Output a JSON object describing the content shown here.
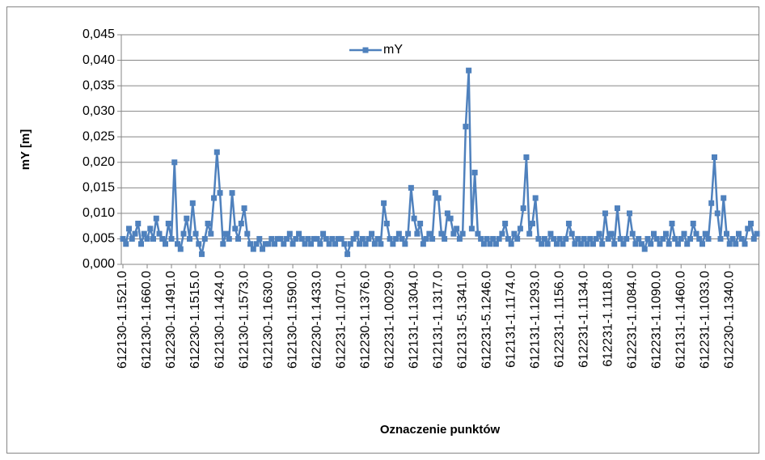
{
  "chart_data": {
    "type": "line",
    "y_label": "mY [m]",
    "x_label": "Oznaczenie punktów",
    "legend": "top",
    "grid": true,
    "ylim": [
      0,
      0.045
    ],
    "yticks": [
      {
        "value": 0,
        "label": "0,000"
      },
      {
        "value": 0.005,
        "label": "0,005"
      },
      {
        "value": 0.01,
        "label": "0,010"
      },
      {
        "value": 0.015,
        "label": "0,015"
      },
      {
        "value": 0.02,
        "label": "0,020"
      },
      {
        "value": 0.025,
        "label": "0,025"
      },
      {
        "value": 0.03,
        "label": "0,030"
      },
      {
        "value": 0.035,
        "label": "0,035"
      },
      {
        "value": 0.04,
        "label": "0,040"
      },
      {
        "value": 0.045,
        "label": "0,045"
      }
    ],
    "categories": [
      "612130-1.1521.0",
      null,
      null,
      null,
      null,
      null,
      null,
      null,
      "612130-1.1660.0",
      null,
      null,
      null,
      null,
      null,
      null,
      null,
      "612230-1.1491.0",
      null,
      null,
      null,
      null,
      null,
      null,
      null,
      "612230-1.1515.0",
      null,
      null,
      null,
      null,
      null,
      null,
      null,
      "612130-1.1424.0",
      null,
      null,
      null,
      null,
      null,
      null,
      null,
      "612130-1.1573.0",
      null,
      null,
      null,
      null,
      null,
      null,
      null,
      "612130-1.1630.0",
      null,
      null,
      null,
      null,
      null,
      null,
      null,
      "612130-1.1590.0",
      null,
      null,
      null,
      null,
      null,
      null,
      null,
      "612230-1.1433.0",
      null,
      null,
      null,
      null,
      null,
      null,
      null,
      "612231-1.1071.0",
      null,
      null,
      null,
      null,
      null,
      null,
      null,
      "612230-1.1376.0",
      null,
      null,
      null,
      null,
      null,
      null,
      null,
      "612231-1.0029.0",
      null,
      null,
      null,
      null,
      null,
      null,
      null,
      "612131-1.1304.0",
      null,
      null,
      null,
      null,
      null,
      null,
      null,
      "612131-1.1317.0",
      null,
      null,
      null,
      null,
      null,
      null,
      null,
      "612131-5.1341.0",
      null,
      null,
      null,
      null,
      null,
      null,
      null,
      "612231-5.1246.0",
      null,
      null,
      null,
      null,
      null,
      null,
      null,
      "612131-1.1174.0",
      null,
      null,
      null,
      null,
      null,
      null,
      null,
      "612131-1.1293.0",
      null,
      null,
      null,
      null,
      null,
      null,
      null,
      "612231-1.1156.0",
      null,
      null,
      null,
      null,
      null,
      null,
      null,
      "612231-1.1134.0",
      null,
      null,
      null,
      null,
      null,
      null,
      null,
      "612231-1.1118.0",
      null,
      null,
      null,
      null,
      null,
      null,
      null,
      "612231-1.1084.0",
      null,
      null,
      null,
      null,
      null,
      null,
      null,
      "612231-1.1090.0",
      null,
      null,
      null,
      null,
      null,
      null,
      null,
      "612131-1.1460.0",
      null,
      null,
      null,
      null,
      null,
      null,
      null,
      "612231-1.1033.0",
      null,
      null,
      null,
      null,
      null,
      null,
      null,
      "612230-1.1340.0",
      null,
      null,
      null,
      null,
      null,
      null,
      null,
      null,
      null
    ],
    "series": [
      {
        "name": "mY",
        "color": "#4F81BD",
        "values": [
          0.005,
          0.004,
          0.007,
          0.005,
          0.006,
          0.008,
          0.004,
          0.006,
          0.005,
          0.007,
          0.005,
          0.009,
          0.006,
          0.005,
          0.004,
          0.008,
          0.005,
          0.02,
          0.004,
          0.003,
          0.006,
          0.009,
          0.005,
          0.012,
          0.006,
          0.004,
          0.002,
          0.005,
          0.008,
          0.006,
          0.013,
          0.022,
          0.014,
          0.004,
          0.006,
          0.005,
          0.014,
          0.007,
          0.005,
          0.008,
          0.011,
          0.006,
          0.004,
          0.003,
          0.004,
          0.005,
          0.003,
          0.004,
          0.004,
          0.005,
          0.004,
          0.005,
          0.005,
          0.004,
          0.005,
          0.006,
          0.004,
          0.005,
          0.006,
          0.005,
          0.004,
          0.005,
          0.004,
          0.005,
          0.005,
          0.004,
          0.006,
          0.005,
          0.004,
          0.005,
          0.004,
          0.005,
          0.005,
          0.004,
          0.002,
          0.004,
          0.005,
          0.006,
          0.004,
          0.005,
          0.004,
          0.005,
          0.006,
          0.004,
          0.005,
          0.004,
          0.012,
          0.008,
          0.005,
          0.004,
          0.005,
          0.006,
          0.005,
          0.004,
          0.006,
          0.015,
          0.009,
          0.006,
          0.008,
          0.004,
          0.005,
          0.006,
          0.005,
          0.014,
          0.013,
          0.006,
          0.005,
          0.01,
          0.009,
          0.006,
          0.007,
          0.005,
          0.006,
          0.027,
          0.038,
          0.007,
          0.018,
          0.006,
          0.005,
          0.004,
          0.005,
          0.004,
          0.005,
          0.004,
          0.005,
          0.006,
          0.008,
          0.005,
          0.004,
          0.006,
          0.005,
          0.007,
          0.011,
          0.021,
          0.006,
          0.008,
          0.013,
          0.005,
          0.004,
          0.005,
          0.004,
          0.006,
          0.005,
          0.004,
          0.005,
          0.004,
          0.005,
          0.008,
          0.006,
          0.004,
          0.005,
          0.004,
          0.005,
          0.004,
          0.005,
          0.004,
          0.005,
          0.006,
          0.004,
          0.01,
          0.005,
          0.006,
          0.004,
          0.011,
          0.005,
          0.004,
          0.005,
          0.01,
          0.006,
          0.004,
          0.005,
          0.004,
          0.003,
          0.005,
          0.004,
          0.006,
          0.005,
          0.004,
          0.005,
          0.006,
          0.004,
          0.008,
          0.005,
          0.004,
          0.005,
          0.006,
          0.004,
          0.005,
          0.008,
          0.006,
          0.005,
          0.004,
          0.006,
          0.005,
          0.012,
          0.021,
          0.01,
          0.005,
          0.013,
          0.006,
          0.004,
          0.005,
          0.004,
          0.006,
          0.005,
          0.004,
          0.007,
          0.008,
          0.005,
          0.006
        ]
      }
    ]
  }
}
